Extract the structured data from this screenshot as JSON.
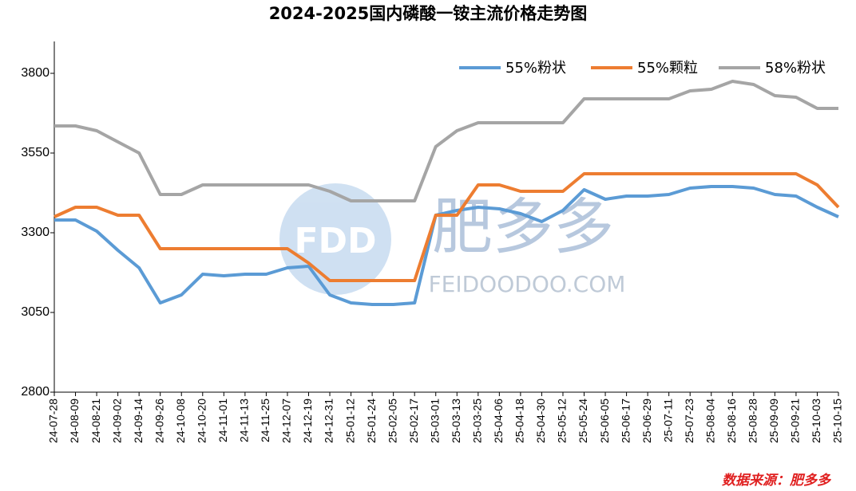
{
  "chart_data": {
    "type": "line",
    "title": "2024-2025国内磷酸一铵主流价格走势图",
    "source": "数据来源：肥多多",
    "watermark": {
      "logo": "FDD",
      "brand": "肥多多",
      "site": "FEIDOODOO.COM"
    },
    "categories": [
      "24-07-28",
      "24-08-09",
      "24-08-21",
      "24-09-02",
      "24-09-14",
      "24-09-26",
      "24-10-08",
      "24-10-20",
      "24-11-01",
      "24-11-13",
      "24-11-25",
      "24-12-07",
      "24-12-19",
      "24-12-31",
      "25-01-12",
      "25-01-24",
      "25-02-05",
      "25-02-17",
      "25-03-01",
      "25-03-13",
      "25-03-25",
      "25-04-06",
      "25-04-18",
      "25-04-30",
      "25-05-12",
      "25-05-24",
      "25-06-05",
      "25-06-17",
      "25-06-29",
      "25-07-11",
      "25-07-23",
      "25-08-04",
      "25-08-16",
      "25-08-28",
      "25-09-09",
      "25-09-21",
      "25-10-03",
      "25-10-15"
    ],
    "series": [
      {
        "name": "55%粉状",
        "color": "#5b9bd5",
        "values": [
          3340,
          3340,
          3305,
          3245,
          3190,
          3080,
          3105,
          3170,
          3165,
          3170,
          3170,
          3190,
          3195,
          3105,
          3080,
          3075,
          3075,
          3080,
          3355,
          3370,
          3380,
          3375,
          3360,
          3335,
          3370,
          3435,
          3405,
          3415,
          3415,
          3420,
          3440,
          3445,
          3445,
          3440,
          3420,
          3415,
          3380,
          3350
        ]
      },
      {
        "name": "55%颗粒",
        "color": "#ed7d31",
        "values": [
          3350,
          3380,
          3380,
          3355,
          3355,
          3250,
          3250,
          3250,
          3250,
          3250,
          3250,
          3250,
          3205,
          3150,
          3150,
          3150,
          3150,
          3150,
          3355,
          3355,
          3450,
          3450,
          3430,
          3430,
          3430,
          3485,
          3485,
          3485,
          3485,
          3485,
          3485,
          3485,
          3485,
          3485,
          3485,
          3485,
          3450,
          3380
        ]
      },
      {
        "name": "58%粉状",
        "color": "#a5a5a5",
        "values": [
          3635,
          3635,
          3620,
          3585,
          3550,
          3420,
          3420,
          3450,
          3450,
          3450,
          3450,
          3450,
          3450,
          3430,
          3400,
          3400,
          3400,
          3400,
          3570,
          3620,
          3645,
          3645,
          3645,
          3645,
          3645,
          3720,
          3720,
          3720,
          3720,
          3720,
          3745,
          3750,
          3775,
          3765,
          3730,
          3725,
          3690,
          3690
        ]
      }
    ],
    "ylim": [
      2800,
      3900
    ],
    "yticks": [
      2800,
      3050,
      3300,
      3550,
      3800
    ],
    "grid": false,
    "legend": "top-right"
  }
}
